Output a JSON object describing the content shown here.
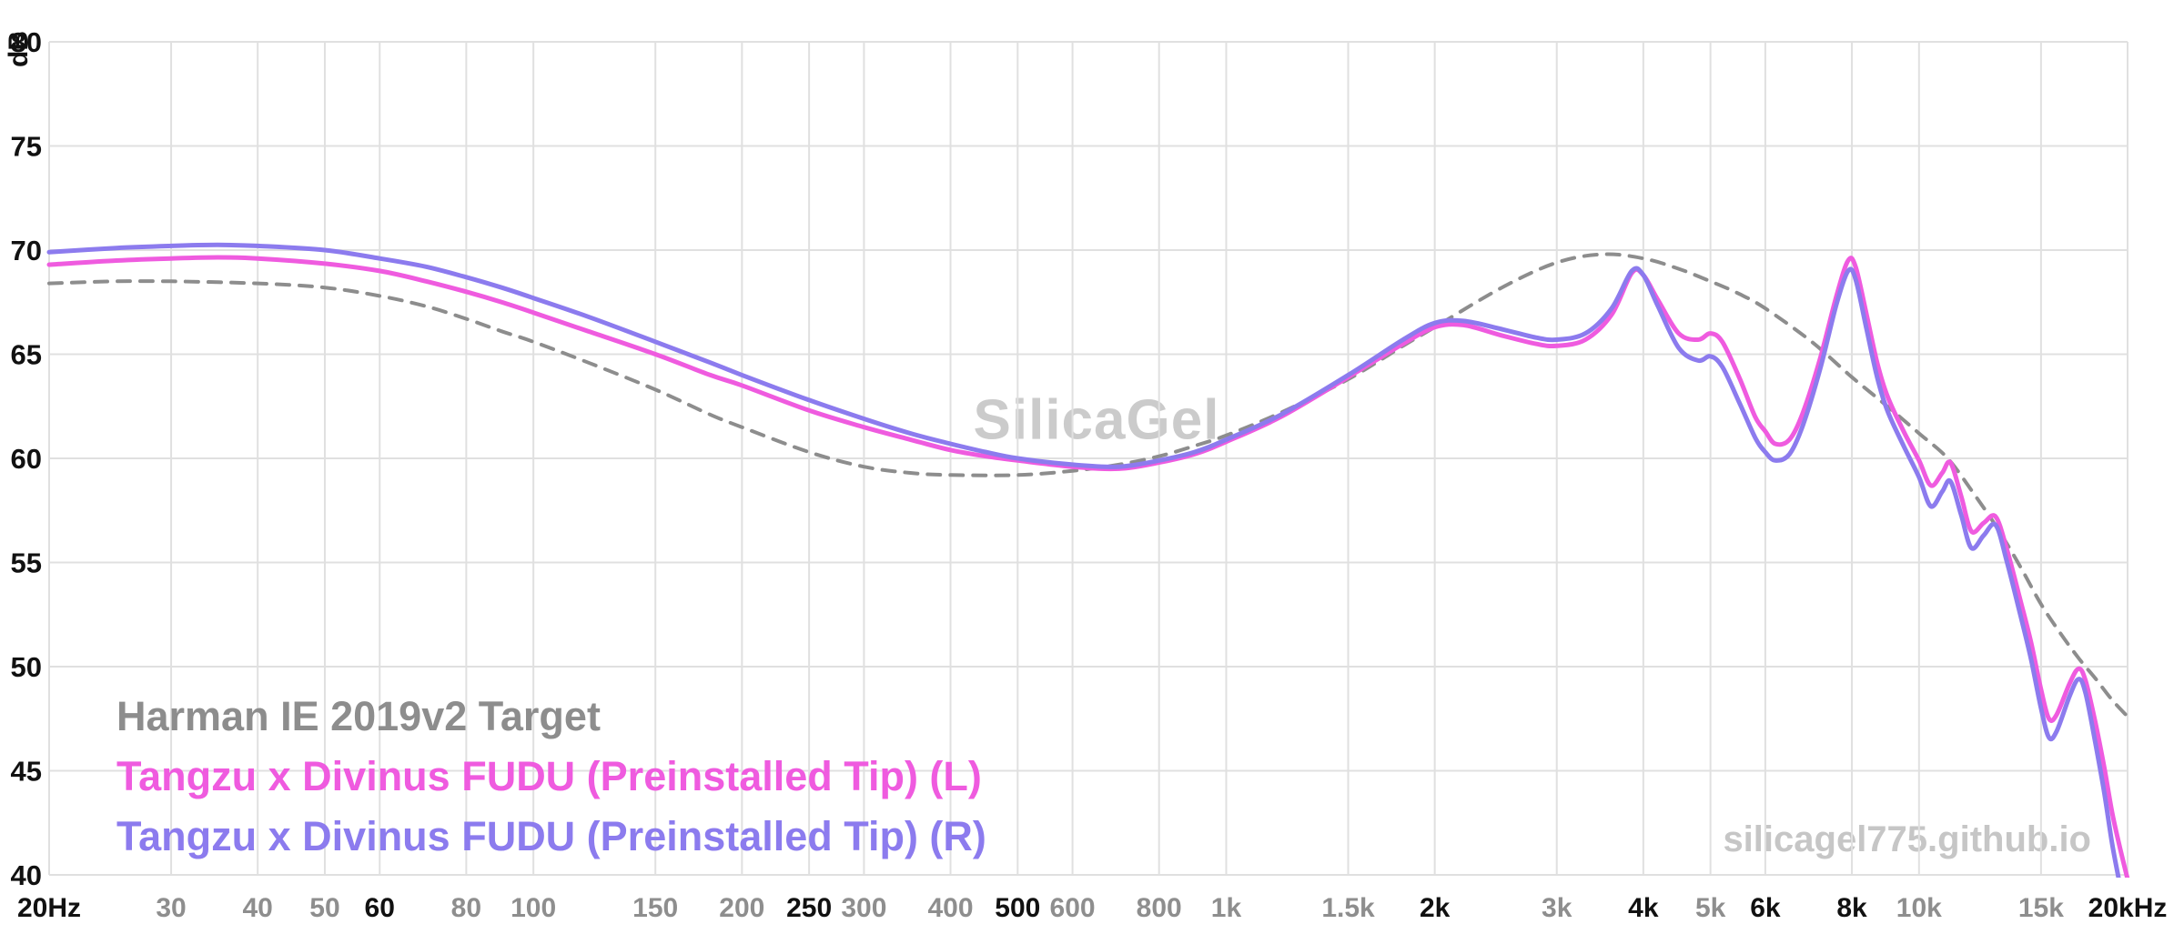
{
  "watermarks": {
    "center": "SilicaGel",
    "corner": "silicagel775.github.io"
  },
  "chart_data": {
    "type": "line",
    "x_scale": "log",
    "xlim": [
      20,
      20000
    ],
    "ylim": [
      40,
      80
    ],
    "ylabel": "dB",
    "grid": true,
    "legend_position": "bottom-left",
    "y_ticks": [
      80,
      75,
      70,
      65,
      60,
      55,
      50,
      45,
      40
    ],
    "x_ticks": [
      {
        "f": 20,
        "label": "20Hz",
        "major": true
      },
      {
        "f": 30,
        "label": "30",
        "major": false
      },
      {
        "f": 40,
        "label": "40",
        "major": false
      },
      {
        "f": 50,
        "label": "50",
        "major": false
      },
      {
        "f": 60,
        "label": "60",
        "major": true
      },
      {
        "f": 80,
        "label": "80",
        "major": false
      },
      {
        "f": 100,
        "label": "100",
        "major": false
      },
      {
        "f": 150,
        "label": "150",
        "major": false
      },
      {
        "f": 200,
        "label": "200",
        "major": false
      },
      {
        "f": 250,
        "label": "250",
        "major": true
      },
      {
        "f": 300,
        "label": "300",
        "major": false
      },
      {
        "f": 400,
        "label": "400",
        "major": false
      },
      {
        "f": 500,
        "label": "500",
        "major": true
      },
      {
        "f": 600,
        "label": "600",
        "major": false
      },
      {
        "f": 800,
        "label": "800",
        "major": false
      },
      {
        "f": 1000,
        "label": "1k",
        "major": false
      },
      {
        "f": 1500,
        "label": "1.5k",
        "major": false
      },
      {
        "f": 2000,
        "label": "2k",
        "major": true
      },
      {
        "f": 3000,
        "label": "3k",
        "major": false
      },
      {
        "f": 4000,
        "label": "4k",
        "major": true
      },
      {
        "f": 5000,
        "label": "5k",
        "major": false
      },
      {
        "f": 6000,
        "label": "6k",
        "major": true
      },
      {
        "f": 8000,
        "label": "8k",
        "major": true
      },
      {
        "f": 10000,
        "label": "10k",
        "major": false
      },
      {
        "f": 15000,
        "label": "15k",
        "major": false
      },
      {
        "f": 20000,
        "label": "20kHz",
        "major": true
      }
    ],
    "colors": {
      "grid": "#e0e0e0",
      "tick_major": "#111111",
      "tick_minor": "#8e8e8e",
      "watermark": "#cbcbcb"
    },
    "series": [
      {
        "name": "Harman IE 2019v2 Target",
        "color": "#8d8d8d",
        "style": "dashed",
        "points": [
          [
            20,
            68.4
          ],
          [
            25,
            68.5
          ],
          [
            30,
            68.5
          ],
          [
            40,
            68.4
          ],
          [
            50,
            68.2
          ],
          [
            60,
            67.8
          ],
          [
            70,
            67.3
          ],
          [
            80,
            66.7
          ],
          [
            90,
            66.1
          ],
          [
            100,
            65.6
          ],
          [
            120,
            64.6
          ],
          [
            150,
            63.3
          ],
          [
            180,
            62.1
          ],
          [
            200,
            61.5
          ],
          [
            250,
            60.3
          ],
          [
            300,
            59.6
          ],
          [
            350,
            59.3
          ],
          [
            400,
            59.2
          ],
          [
            500,
            59.2
          ],
          [
            600,
            59.4
          ],
          [
            700,
            59.7
          ],
          [
            800,
            60.1
          ],
          [
            900,
            60.6
          ],
          [
            1000,
            61.1
          ],
          [
            1200,
            62.2
          ],
          [
            1500,
            63.8
          ],
          [
            1800,
            65.4
          ],
          [
            2000,
            66.3
          ],
          [
            2500,
            68.2
          ],
          [
            3000,
            69.4
          ],
          [
            3500,
            69.8
          ],
          [
            4000,
            69.6
          ],
          [
            4500,
            69.1
          ],
          [
            5000,
            68.5
          ],
          [
            5500,
            67.9
          ],
          [
            6000,
            67.2
          ],
          [
            7000,
            65.6
          ],
          [
            8000,
            63.9
          ],
          [
            9000,
            62.5
          ],
          [
            10000,
            61.2
          ],
          [
            11000,
            60.0
          ],
          [
            12000,
            58.3
          ],
          [
            13000,
            56.6
          ],
          [
            14000,
            54.8
          ],
          [
            15000,
            53.0
          ],
          [
            16000,
            51.6
          ],
          [
            17000,
            50.4
          ],
          [
            18000,
            49.4
          ],
          [
            19000,
            48.4
          ],
          [
            20000,
            47.6
          ]
        ]
      },
      {
        "name": "Tangzu x Divinus FUDU (Preinstalled Tip) (L)",
        "color": "#ef5bdf",
        "style": "solid",
        "points": [
          [
            20,
            69.3
          ],
          [
            25,
            69.5
          ],
          [
            30,
            69.6
          ],
          [
            35,
            69.65
          ],
          [
            40,
            69.6
          ],
          [
            50,
            69.35
          ],
          [
            60,
            69.0
          ],
          [
            70,
            68.5
          ],
          [
            80,
            68.0
          ],
          [
            90,
            67.5
          ],
          [
            100,
            67.0
          ],
          [
            120,
            66.1
          ],
          [
            150,
            65.0
          ],
          [
            180,
            64.0
          ],
          [
            200,
            63.5
          ],
          [
            250,
            62.3
          ],
          [
            300,
            61.5
          ],
          [
            350,
            60.9
          ],
          [
            400,
            60.4
          ],
          [
            450,
            60.1
          ],
          [
            500,
            59.9
          ],
          [
            600,
            59.6
          ],
          [
            700,
            59.5
          ],
          [
            800,
            59.8
          ],
          [
            900,
            60.2
          ],
          [
            1000,
            60.8
          ],
          [
            1200,
            62.0
          ],
          [
            1500,
            63.9
          ],
          [
            1800,
            65.5
          ],
          [
            2000,
            66.3
          ],
          [
            2200,
            66.4
          ],
          [
            2500,
            65.9
          ],
          [
            2800,
            65.5
          ],
          [
            3000,
            65.4
          ],
          [
            3300,
            65.7
          ],
          [
            3600,
            66.9
          ],
          [
            3850,
            68.9
          ],
          [
            4000,
            68.8
          ],
          [
            4200,
            67.6
          ],
          [
            4500,
            66.0
          ],
          [
            4800,
            65.7
          ],
          [
            5000,
            66.0
          ],
          [
            5200,
            65.6
          ],
          [
            5500,
            63.9
          ],
          [
            5800,
            62.0
          ],
          [
            6000,
            61.3
          ],
          [
            6200,
            60.7
          ],
          [
            6500,
            60.9
          ],
          [
            6800,
            62.2
          ],
          [
            7200,
            64.8
          ],
          [
            7600,
            67.8
          ],
          [
            7900,
            69.5
          ],
          [
            8100,
            69.2
          ],
          [
            8400,
            66.9
          ],
          [
            8700,
            64.6
          ],
          [
            9000,
            63.0
          ],
          [
            9500,
            61.3
          ],
          [
            10000,
            59.9
          ],
          [
            10400,
            58.7
          ],
          [
            10800,
            59.3
          ],
          [
            11100,
            59.8
          ],
          [
            11500,
            58.2
          ],
          [
            11900,
            56.5
          ],
          [
            12400,
            56.9
          ],
          [
            12900,
            57.2
          ],
          [
            13400,
            55.6
          ],
          [
            14000,
            53.2
          ],
          [
            14500,
            51.2
          ],
          [
            15000,
            48.9
          ],
          [
            15400,
            47.5
          ],
          [
            15800,
            47.7
          ],
          [
            16500,
            49.2
          ],
          [
            17000,
            49.9
          ],
          [
            17400,
            49.3
          ],
          [
            18000,
            47.2
          ],
          [
            18500,
            45.2
          ],
          [
            19000,
            43.0
          ],
          [
            19500,
            41.3
          ],
          [
            20000,
            39.8
          ]
        ]
      },
      {
        "name": "Tangzu x Divinus FUDU (Preinstalled Tip) (R)",
        "color": "#8c7bee",
        "style": "solid",
        "points": [
          [
            20,
            69.9
          ],
          [
            25,
            70.1
          ],
          [
            30,
            70.2
          ],
          [
            35,
            70.25
          ],
          [
            40,
            70.2
          ],
          [
            50,
            70.0
          ],
          [
            60,
            69.6
          ],
          [
            70,
            69.2
          ],
          [
            80,
            68.7
          ],
          [
            90,
            68.2
          ],
          [
            100,
            67.7
          ],
          [
            120,
            66.8
          ],
          [
            150,
            65.6
          ],
          [
            180,
            64.6
          ],
          [
            200,
            64.0
          ],
          [
            250,
            62.8
          ],
          [
            300,
            61.9
          ],
          [
            350,
            61.2
          ],
          [
            400,
            60.7
          ],
          [
            450,
            60.3
          ],
          [
            500,
            60.0
          ],
          [
            600,
            59.7
          ],
          [
            700,
            59.6
          ],
          [
            800,
            59.9
          ],
          [
            900,
            60.3
          ],
          [
            1000,
            60.9
          ],
          [
            1200,
            62.1
          ],
          [
            1500,
            64.0
          ],
          [
            1800,
            65.7
          ],
          [
            2000,
            66.5
          ],
          [
            2200,
            66.6
          ],
          [
            2500,
            66.2
          ],
          [
            2800,
            65.8
          ],
          [
            3000,
            65.7
          ],
          [
            3300,
            66.0
          ],
          [
            3600,
            67.2
          ],
          [
            3850,
            69.0
          ],
          [
            4000,
            68.8
          ],
          [
            4200,
            67.3
          ],
          [
            4500,
            65.3
          ],
          [
            4800,
            64.7
          ],
          [
            5000,
            64.9
          ],
          [
            5200,
            64.4
          ],
          [
            5500,
            62.7
          ],
          [
            5800,
            61.0
          ],
          [
            6000,
            60.3
          ],
          [
            6200,
            59.9
          ],
          [
            6500,
            60.2
          ],
          [
            6800,
            61.6
          ],
          [
            7200,
            64.3
          ],
          [
            7600,
            67.4
          ],
          [
            7900,
            69.0
          ],
          [
            8100,
            68.6
          ],
          [
            8400,
            66.2
          ],
          [
            8700,
            63.9
          ],
          [
            9000,
            62.3
          ],
          [
            9500,
            60.6
          ],
          [
            10000,
            59.1
          ],
          [
            10400,
            57.7
          ],
          [
            10800,
            58.4
          ],
          [
            11100,
            58.9
          ],
          [
            11500,
            57.3
          ],
          [
            11900,
            55.7
          ],
          [
            12400,
            56.3
          ],
          [
            12900,
            56.8
          ],
          [
            13400,
            55.0
          ],
          [
            14000,
            52.5
          ],
          [
            14500,
            50.4
          ],
          [
            15000,
            48.0
          ],
          [
            15400,
            46.6
          ],
          [
            15800,
            46.9
          ],
          [
            16500,
            48.6
          ],
          [
            17000,
            49.4
          ],
          [
            17400,
            48.7
          ],
          [
            18000,
            46.2
          ],
          [
            18500,
            44.0
          ],
          [
            19000,
            41.5
          ],
          [
            19500,
            39.5
          ],
          [
            20000,
            37.5
          ]
        ]
      }
    ]
  }
}
